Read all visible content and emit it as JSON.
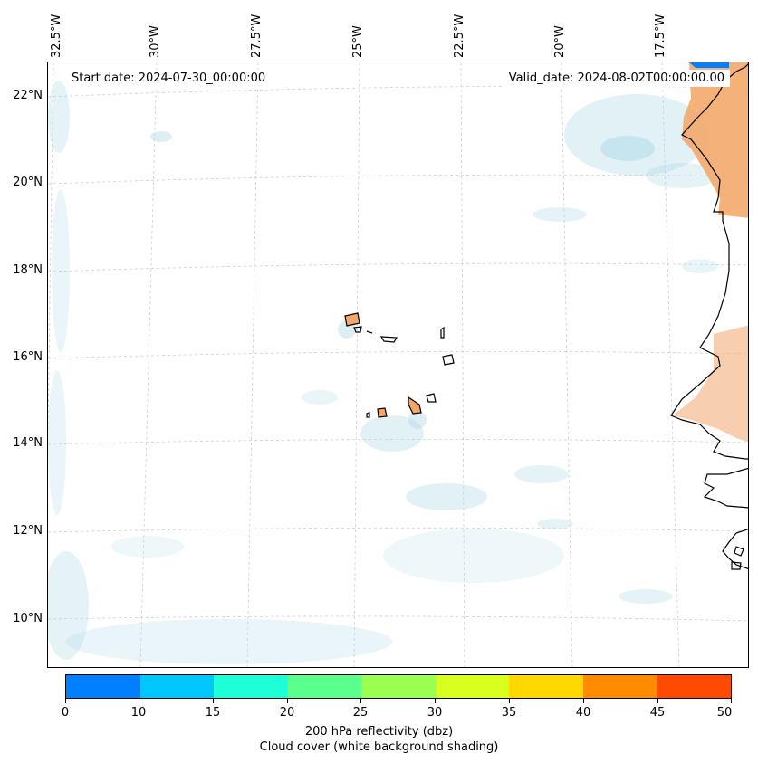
{
  "map": {
    "start_label": "Start date: 2024-07-30_00:00:00",
    "valid_label": "Valid_date: 2024-08-02T00:00:00.00",
    "longitude_labels": [
      "32.5°W",
      "30°W",
      "27.5°W",
      "25°W",
      "22.5°W",
      "20°W",
      "17.5°W"
    ],
    "latitude_labels": [
      "22°N",
      "20°N",
      "18°N",
      "16°N",
      "14°N",
      "12°N",
      "10°N"
    ]
  },
  "colorbar": {
    "colors": [
      "#0080ff",
      "#00c8ff",
      "#1effd8",
      "#5aff8c",
      "#9aff50",
      "#d8ff1e",
      "#ffd800",
      "#ff8c00",
      "#ff4a00"
    ],
    "tick_labels": [
      "0",
      "10",
      "15",
      "20",
      "25",
      "30",
      "35",
      "40",
      "45",
      "50"
    ],
    "title_line1": "200 hPa reflectivity (dbz)",
    "title_line2": "Cloud cover (white background shading)"
  },
  "colors": {
    "cloud": "#a9d6e5",
    "land_fill": "#f3a86b",
    "reflectivity_corner": "#0080ff"
  }
}
